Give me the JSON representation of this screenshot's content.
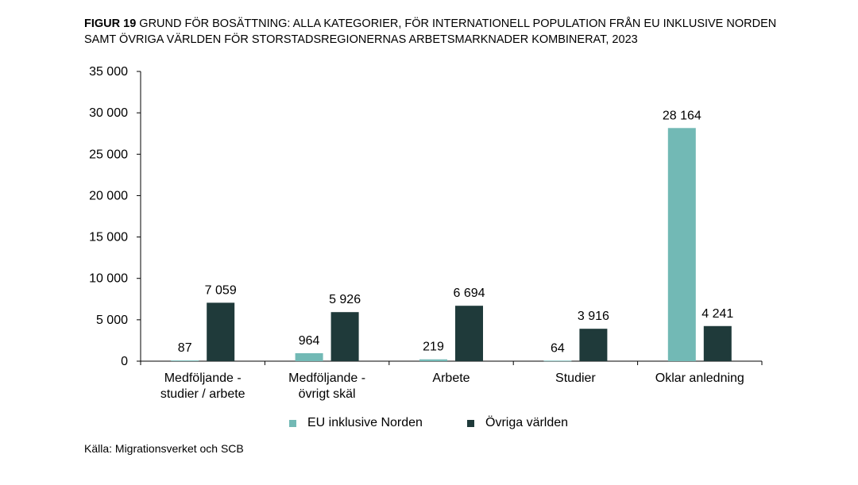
{
  "header": {
    "figure_label": "FIGUR 19",
    "title": "GRUND FÖR BOSÄTTNING: ALLA KATEGORIER, FÖR INTERNATIONELL POPULATION FRÅN EU INKLUSIVE NORDEN SAMT ÖVRIGA VÄRLDEN FÖR STORSTADSREGIONERNAS ARBETSMARKNADER KOMBINERAT, 2023"
  },
  "source": "Källa: Migrationsverket och SCB",
  "colors": {
    "series_eu": "#72b9b5",
    "series_ovriga": "#1f3a3a",
    "axis": "#000000"
  },
  "chart_data": {
    "type": "bar",
    "title": "GRUND FÖR BOSÄTTNING: ALLA KATEGORIER, FÖR INTERNATIONELL POPULATION FRÅN EU INKLUSIVE NORDEN SAMT ÖVRIGA VÄRLDEN FÖR STORSTADSREGIONERNAS ARBETSMARKNADER KOMBINERAT, 2023",
    "categories": [
      [
        "Medföljande -",
        "studier / arbete"
      ],
      [
        "Medföljande -",
        "övrigt skäl"
      ],
      [
        "Arbete"
      ],
      [
        "Studier"
      ],
      [
        "Oklar anledning"
      ]
    ],
    "series": [
      {
        "name": "EU inklusive Norden",
        "values": [
          87,
          964,
          219,
          64,
          28164
        ],
        "labels": [
          "87",
          "964",
          "219",
          "64",
          "28 164"
        ]
      },
      {
        "name": "Övriga världen",
        "values": [
          7059,
          5926,
          6694,
          3916,
          4241
        ],
        "labels": [
          "7 059",
          "5 926",
          "6 694",
          "3 916",
          "4 241"
        ]
      }
    ],
    "ylim": [
      0,
      35000
    ],
    "yticks": [
      0,
      5000,
      10000,
      15000,
      20000,
      25000,
      30000,
      35000
    ],
    "ytick_labels": [
      "0",
      "5 000",
      "10 000",
      "15 000",
      "20 000",
      "25 000",
      "30 000",
      "35 000"
    ],
    "xlabel": "",
    "ylabel": "",
    "grid": false,
    "legend_position": "bottom"
  }
}
